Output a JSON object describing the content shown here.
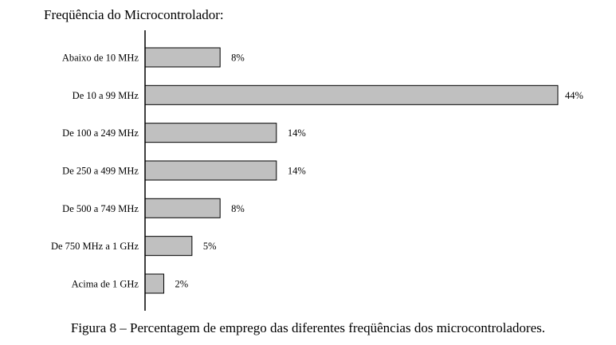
{
  "chart_data": {
    "type": "bar",
    "orientation": "horizontal",
    "title": "Freqüência do Microcontrolador:",
    "categories": [
      "Abaixo de 10 MHz",
      "De 10 a 99 MHz",
      "De 100 a 249 MHz",
      "De 250 a 499 MHz",
      "De 500 a 749 MHz",
      "De 750 MHz a 1 GHz",
      "Acima de 1 GHz"
    ],
    "values": [
      8,
      44,
      14,
      14,
      8,
      5,
      2
    ],
    "value_labels": [
      "8%",
      "44%",
      "14%",
      "14%",
      "8%",
      "5%",
      "2%"
    ],
    "xlim": [
      0,
      44
    ],
    "grid": false,
    "bar_color": "#c0c0c0"
  },
  "caption": "Figura 8 – Percentagem de emprego das diferentes freqüências dos microcontroladores."
}
